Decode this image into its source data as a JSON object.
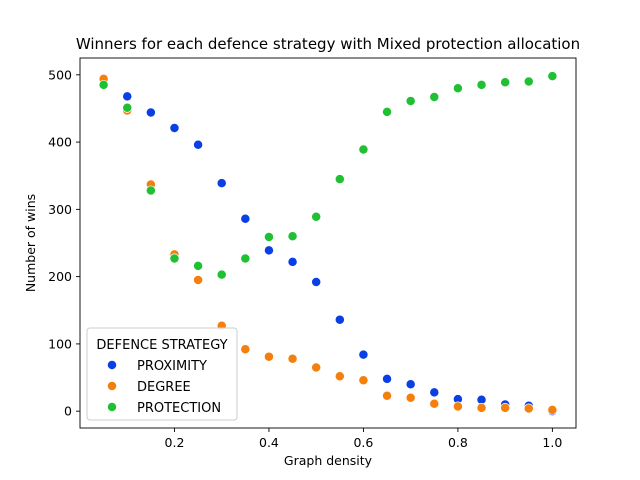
{
  "chart_data": {
    "type": "scatter",
    "title": "Winners for each defence strategy with Mixed protection allocation",
    "xlabel": "Graph density",
    "ylabel": "Number of wins",
    "xlim": [
      0.0,
      1.05
    ],
    "ylim": [
      -25,
      525
    ],
    "xticks": [
      {
        "value": 0.2,
        "label": "0.2"
      },
      {
        "value": 0.4,
        "label": "0.4"
      },
      {
        "value": 0.6,
        "label": "0.6"
      },
      {
        "value": 0.8,
        "label": "0.8"
      },
      {
        "value": 1.0,
        "label": "1.0"
      }
    ],
    "yticks": [
      {
        "value": 0,
        "label": "0"
      },
      {
        "value": 100,
        "label": "100"
      },
      {
        "value": 200,
        "label": "200"
      },
      {
        "value": 300,
        "label": "300"
      },
      {
        "value": 400,
        "label": "400"
      },
      {
        "value": 500,
        "label": "500"
      }
    ],
    "grid": false,
    "legend": {
      "title": "DEFENCE STRATEGY",
      "placement": "lower-left"
    },
    "x": [
      0.05,
      0.1,
      0.15,
      0.2,
      0.25,
      0.3,
      0.35,
      0.4,
      0.45,
      0.5,
      0.55,
      0.6,
      0.65,
      0.7,
      0.75,
      0.8,
      0.85,
      0.9,
      0.95,
      1.0
    ],
    "series": [
      {
        "name": "PROXIMITY",
        "color": "#0a3fe6",
        "values": [
          null,
          468,
          444,
          421,
          396,
          339,
          286,
          239,
          222,
          192,
          136,
          84,
          48,
          40,
          28,
          18,
          17,
          10,
          8,
          0
        ]
      },
      {
        "name": "DEGREE",
        "color": "#f57f0d",
        "values": [
          494,
          447,
          337,
          233,
          195,
          127,
          92,
          81,
          78,
          65,
          52,
          46,
          23,
          20,
          11,
          7,
          5,
          5,
          4,
          2
        ]
      },
      {
        "name": "PROTECTION",
        "color": "#1fc133",
        "values": [
          485,
          451,
          328,
          227,
          216,
          203,
          227,
          259,
          260,
          289,
          345,
          389,
          445,
          461,
          467,
          480,
          485,
          489,
          490,
          498
        ]
      }
    ]
  }
}
